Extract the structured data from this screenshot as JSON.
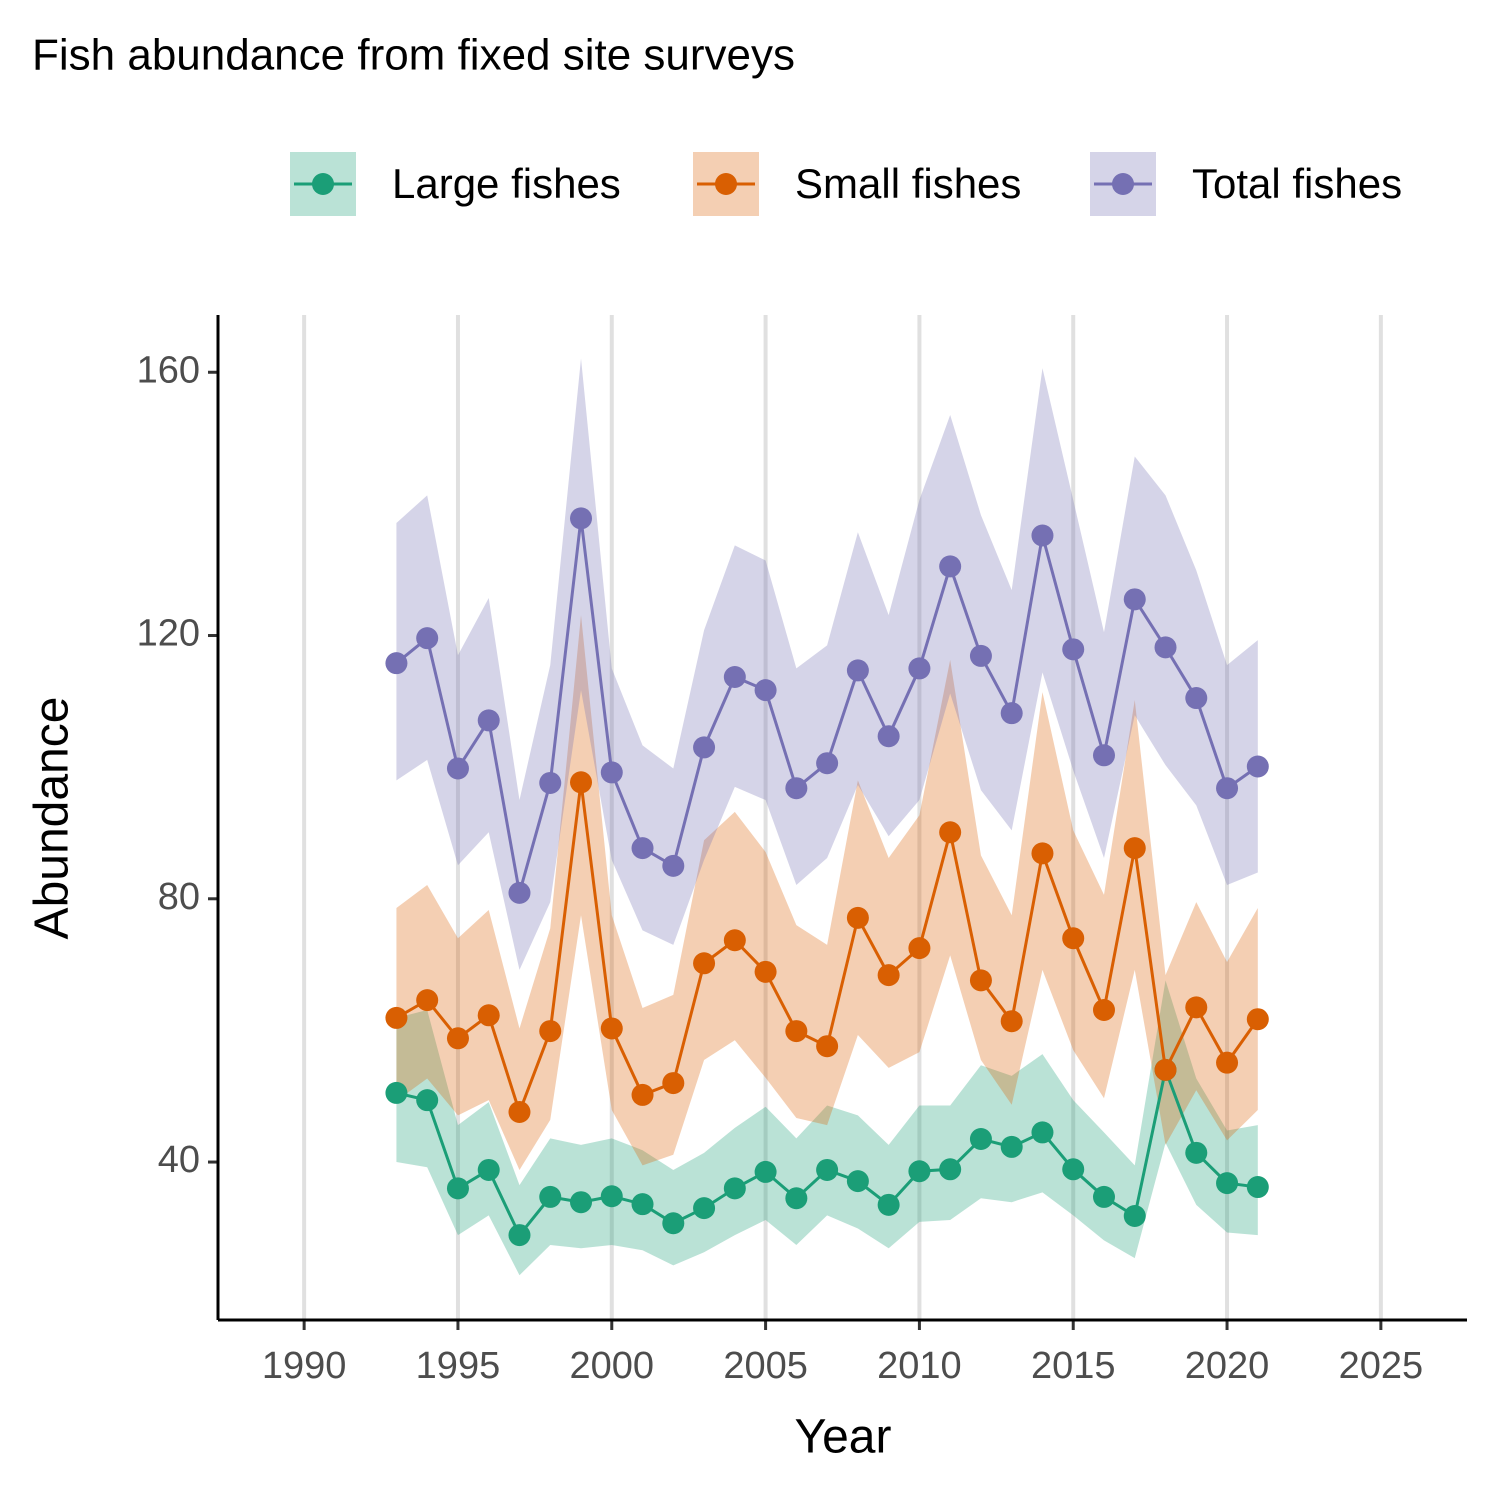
{
  "chart_data": {
    "type": "line",
    "title": "Fish abundance from fixed site surveys",
    "x_label": "Year",
    "y_label": "Abundance",
    "x": [
      1993,
      1994,
      1995,
      1996,
      1997,
      1998,
      1999,
      2000,
      2001,
      2002,
      2003,
      2004,
      2005,
      2006,
      2007,
      2008,
      2009,
      2010,
      2011,
      2012,
      2013,
      2014,
      2015,
      2016,
      2017,
      2018,
      2019,
      2020,
      2021
    ],
    "series": [
      {
        "name": "Large fishes",
        "color": "#1b9e77",
        "values": [
          50.5,
          49.4,
          36.0,
          38.8,
          28.9,
          34.7,
          33.9,
          34.8,
          33.6,
          30.7,
          33.0,
          36.0,
          38.5,
          34.5,
          38.8,
          37.1,
          33.5,
          38.6,
          38.9,
          43.5,
          42.3,
          44.5,
          38.9,
          34.7,
          31.8,
          54.0,
          41.4,
          36.8,
          36.2
        ],
        "upper": [
          61.9,
          63.1,
          45.6,
          49.1,
          36.5,
          43.6,
          42.6,
          43.6,
          41.8,
          38.8,
          41.4,
          45.2,
          48.4,
          43.6,
          48.6,
          47.1,
          42.6,
          48.6,
          48.6,
          54.7,
          53.1,
          56.4,
          49.4,
          44.5,
          39.5,
          67.6,
          52.7,
          44.8,
          45.6
        ],
        "lower": [
          40.0,
          39.2,
          28.9,
          31.9,
          22.8,
          27.4,
          26.9,
          27.4,
          26.6,
          24.3,
          26.3,
          28.9,
          31.2,
          27.4,
          31.9,
          29.9,
          26.9,
          30.9,
          31.2,
          34.5,
          33.9,
          35.4,
          31.9,
          28.1,
          25.4,
          42.9,
          33.5,
          29.3,
          28.9
        ]
      },
      {
        "name": "Small fishes",
        "color": "#d95f02",
        "values": [
          61.9,
          64.6,
          58.8,
          62.3,
          47.6,
          59.9,
          97.7,
          60.3,
          50.2,
          52.0,
          70.2,
          73.7,
          68.9,
          59.9,
          57.6,
          77.1,
          68.4,
          72.5,
          90.1,
          67.6,
          61.4,
          86.9,
          74.0,
          63.1,
          87.7,
          54.0,
          63.5,
          55.1,
          61.7
        ],
        "upper": [
          78.6,
          82.1,
          74.0,
          78.3,
          60.3,
          75.5,
          123.1,
          77.5,
          63.4,
          65.4,
          88.9,
          93.2,
          87.1,
          76.0,
          73.0,
          98.0,
          86.2,
          92.7,
          116.3,
          86.6,
          77.5,
          111.4,
          90.4,
          80.6,
          110.2,
          68.4,
          79.5,
          70.4,
          78.6
        ],
        "lower": [
          49.3,
          52.7,
          47.1,
          49.4,
          38.8,
          46.4,
          77.5,
          47.9,
          39.5,
          41.1,
          55.5,
          58.5,
          52.8,
          46.7,
          45.6,
          59.3,
          54.3,
          56.7,
          71.4,
          55.5,
          48.7,
          69.2,
          57.0,
          49.7,
          69.2,
          42.6,
          50.9,
          43.3,
          47.9
        ]
      },
      {
        "name": "Total fishes",
        "color": "#7570b3",
        "values": [
          115.8,
          119.6,
          99.8,
          107.1,
          80.9,
          97.6,
          137.8,
          99.2,
          87.7,
          85.0,
          103.0,
          113.7,
          111.7,
          96.8,
          100.6,
          114.7,
          104.7,
          115.0,
          130.5,
          116.9,
          108.2,
          135.2,
          117.9,
          101.8,
          125.5,
          118.2,
          110.5,
          96.8,
          100.1
        ],
        "upper": [
          137.1,
          141.3,
          117.0,
          125.7,
          95.0,
          115.5,
          162.1,
          115.0,
          103.3,
          99.8,
          120.8,
          133.7,
          131.4,
          115.0,
          118.5,
          135.7,
          123.1,
          140.6,
          153.5,
          138.3,
          126.9,
          160.6,
          140.6,
          120.5,
          147.2,
          141.3,
          129.9,
          115.5,
          119.3
        ],
        "lower": [
          98.0,
          101.1,
          85.1,
          90.1,
          69.2,
          79.5,
          111.7,
          85.9,
          75.2,
          73.0,
          85.9,
          97.0,
          95.0,
          82.1,
          86.2,
          97.3,
          89.5,
          95.0,
          111.2,
          96.5,
          90.4,
          114.4,
          99.5,
          86.2,
          107.9,
          100.3,
          94.2,
          82.1,
          84.0
        ]
      }
    ],
    "xlim": [
      1987.2,
      2027.8
    ],
    "xticks": [
      1990,
      1995,
      2000,
      2005,
      2010,
      2015,
      2020,
      2025
    ],
    "ylim": [
      16,
      168.7
    ],
    "yticks": [
      40,
      80,
      120,
      160
    ],
    "grid": "x",
    "ribbon_opacity": 0.3,
    "legend": "top"
  }
}
